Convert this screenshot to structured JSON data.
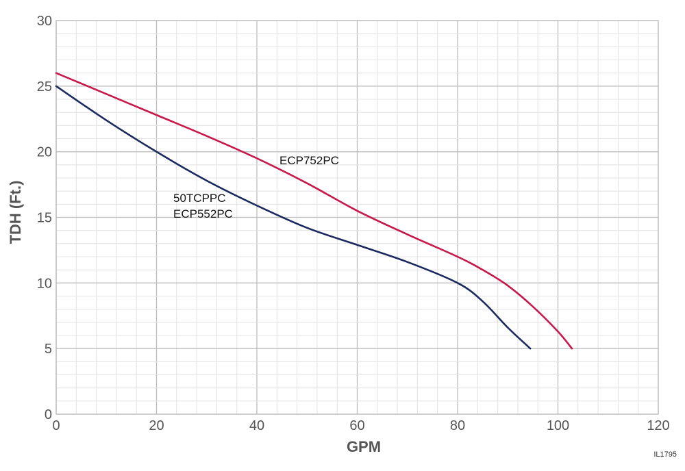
{
  "chart_data": {
    "type": "line",
    "title": "",
    "xlabel": "GPM",
    "ylabel": "TDH (Ft.)",
    "xlim": [
      0,
      120
    ],
    "ylim": [
      0,
      30
    ],
    "xticks": [
      "0",
      "20",
      "40",
      "60",
      "80",
      "100",
      "120"
    ],
    "yticks": [
      "0",
      "5",
      "10",
      "15",
      "20",
      "25",
      "30"
    ],
    "grid": true,
    "series": [
      {
        "name": "ECP752PC",
        "color": "#c8174a",
        "x": [
          0,
          10,
          20,
          30,
          40,
          50,
          60,
          70,
          80,
          85,
          90,
          95,
          100,
          102.8
        ],
        "y": [
          26,
          24.4,
          22.8,
          21.2,
          19.5,
          17.6,
          15.5,
          13.7,
          12,
          11,
          9.8,
          8.2,
          6.3,
          5
        ]
      },
      {
        "name": "50TCPPC ECP552PC",
        "labels": [
          "50TCPPC",
          "ECP552PC"
        ],
        "color": "#1b2a5e",
        "x": [
          0,
          10,
          20,
          30,
          40,
          50,
          60,
          70,
          80,
          85,
          90,
          94.5
        ],
        "y": [
          25,
          22.4,
          20,
          17.8,
          15.9,
          14.2,
          12.9,
          11.6,
          10,
          8.6,
          6.6,
          5
        ]
      }
    ],
    "annotations": [
      "ECP752PC",
      "50TCPPC",
      "ECP552PC"
    ],
    "figure_id": "IL1795"
  }
}
